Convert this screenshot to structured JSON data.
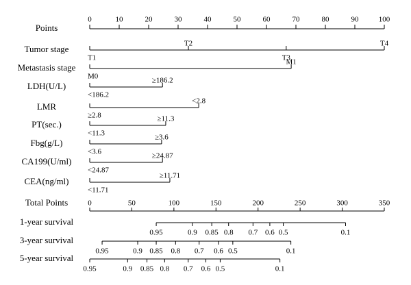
{
  "chart_data": {
    "type": "nomogram",
    "points_axis": {
      "label": "Points",
      "lim": [
        0,
        100
      ],
      "ticks": [
        0,
        10,
        20,
        30,
        40,
        50,
        60,
        70,
        80,
        90,
        100
      ]
    },
    "variables": [
      {
        "name": "Tumor stage",
        "levels": [
          "T1",
          "T2",
          "T3",
          "T4"
        ],
        "points": [
          0,
          33.5,
          66.7,
          100
        ]
      },
      {
        "name": "Metastasis stage",
        "levels": [
          "M0",
          "M1"
        ],
        "points": [
          0,
          68.4
        ]
      },
      {
        "name": "LDH(U/L)",
        "levels": [
          "<186.2",
          "≥186.2"
        ],
        "points": [
          0,
          24.7
        ]
      },
      {
        "name": "LMR",
        "levels": [
          "≥2.8",
          "<2.8"
        ],
        "points": [
          0,
          37
        ]
      },
      {
        "name": "PT(sec.)",
        "levels": [
          "<11.3",
          "≥11.3"
        ],
        "points": [
          0,
          25.8
        ]
      },
      {
        "name": "Fbg(g/L)",
        "levels": [
          "<3.6",
          "≥3.6"
        ],
        "points": [
          0,
          24.4
        ]
      },
      {
        "name": "CA199(U/ml)",
        "levels": [
          "<24.87",
          "≥24.87"
        ],
        "points": [
          0,
          24.7
        ]
      },
      {
        "name": "CEA(ng/ml)",
        "levels": [
          "<11.71",
          "≥11.71"
        ],
        "points": [
          0,
          27.2
        ]
      }
    ],
    "total_points_axis": {
      "label": "Total Points",
      "lim": [
        0,
        350
      ],
      "ticks": [
        0,
        50,
        100,
        150,
        200,
        250,
        300,
        350
      ]
    },
    "survival": [
      {
        "name": "1-year survival",
        "probabilities": [
          0.95,
          0.9,
          0.85,
          0.8,
          0.7,
          0.6,
          0.5,
          0.1
        ],
        "total_points": [
          79,
          122,
          145,
          165,
          194,
          214,
          230,
          304
        ]
      },
      {
        "name": "3-year survival",
        "probabilities": [
          0.95,
          0.9,
          0.85,
          0.8,
          0.7,
          0.6,
          0.5,
          0.1
        ],
        "total_points": [
          14.7,
          57,
          79,
          102,
          130,
          153,
          170,
          239
        ]
      },
      {
        "name": "5-year survival",
        "probabilities": [
          0.95,
          0.9,
          0.85,
          0.8,
          0.7,
          0.6,
          0.5,
          0.1
        ],
        "total_points": [
          0,
          45,
          68,
          89,
          117,
          138,
          155,
          226
        ]
      }
    ]
  }
}
